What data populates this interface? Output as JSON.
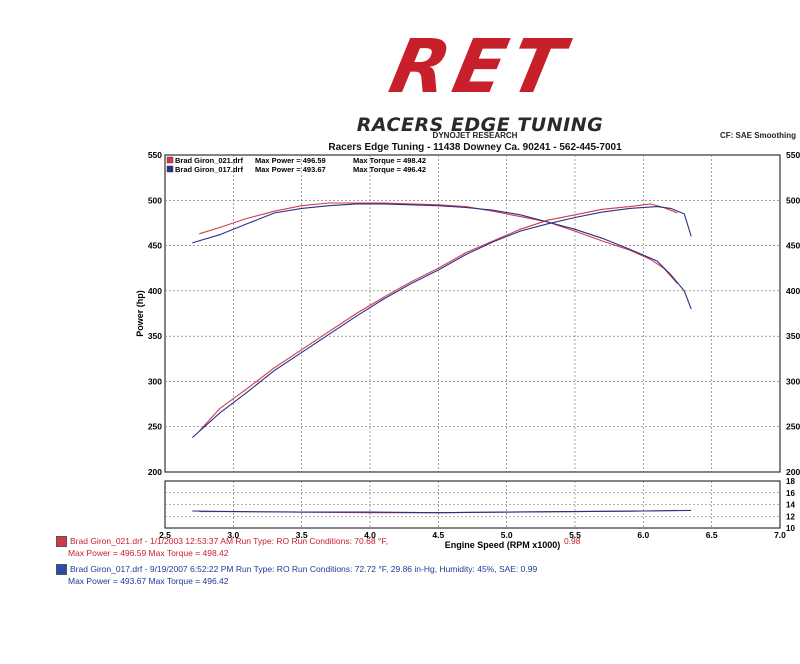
{
  "logo": {
    "main": "RET",
    "sub": "RACERS EDGE TUNING"
  },
  "header": {
    "line1": "DYNOJET RESEARCH",
    "line2": "Racers Edge Tuning - 11438 Downey Ca. 90241 - 562-445-7001",
    "cf": "CF: SAE  Smoothing"
  },
  "legend": [
    {
      "file": "Brad Giron_021.drf",
      "max_power_label": "Max Power = 496.59",
      "max_torque_label": "Max Torque = 498.42",
      "color": "#d23a4a"
    },
    {
      "file": "Brad Giron_017.drf",
      "max_power_label": "Max Power = 493.67",
      "max_torque_label": "Max Torque = 496.42",
      "color": "#2a2f8a"
    }
  ],
  "footer": [
    {
      "line1": "Brad Giron_021.drf - 1/1/2003 12:53:37 AM  Run Type: RO  Run Conditions: 70.68 °F,",
      "line1b": "0.98",
      "line2": "Max Power = 496.59  Max Torque = 498.42",
      "color": "#c8202a"
    },
    {
      "line1": "Brad Giron_017.drf - 9/19/2007 6:52:22 PM  Run Type: RO  Run Conditions: 72.72 °F, 29.86 in-Hg,  Humidity:  45%, SAE: 0.99",
      "line2": "Max Power = 493.67  Max Torque = 496.42",
      "color": "#1f3a93"
    }
  ],
  "chart_data": {
    "type": "line",
    "xlabel": "Engine Speed (RPM x1000)",
    "ylabel": "Power (hp)",
    "xlim": [
      2.5,
      7.0
    ],
    "ylim": [
      200,
      550
    ],
    "x_ticks": [
      "2.5",
      "3.0",
      "3.5",
      "4.0",
      "4.5",
      "5.0",
      "5.5",
      "6.0",
      "6.5",
      "7.0"
    ],
    "y_ticks": [
      "200",
      "250",
      "300",
      "350",
      "400",
      "450",
      "500",
      "550"
    ],
    "y_right_ticks": [
      "200",
      "250",
      "300",
      "350",
      "400",
      "450",
      "500",
      "550"
    ],
    "sub_ticks": [
      "10",
      "12",
      "14",
      "16",
      "18"
    ],
    "sub_ylim": [
      10,
      18
    ],
    "grid": true,
    "series": [
      {
        "name": "Brad Giron_021.drf",
        "color": "#d23a4a",
        "power": {
          "x": [
            2.75,
            2.9,
            3.1,
            3.3,
            3.5,
            3.7,
            3.9,
            4.1,
            4.3,
            4.5,
            4.7,
            4.9,
            5.1,
            5.3,
            5.5,
            5.7,
            5.9,
            6.05,
            6.15,
            6.25
          ],
          "y": [
            245,
            270,
            292,
            315,
            335,
            355,
            375,
            393,
            410,
            425,
            442,
            455,
            468,
            478,
            484,
            490,
            493,
            496,
            492,
            486
          ]
        },
        "torque": {
          "x": [
            2.75,
            2.9,
            3.1,
            3.3,
            3.5,
            3.7,
            3.9,
            4.1,
            4.3,
            4.5,
            4.7,
            4.9,
            5.1,
            5.3,
            5.5,
            5.7,
            5.9,
            6.05,
            6.15,
            6.25
          ],
          "y": [
            463,
            470,
            480,
            488,
            494,
            497,
            497,
            497,
            496,
            495,
            493,
            488,
            482,
            476,
            466,
            455,
            445,
            435,
            425,
            408
          ]
        },
        "afr": {
          "x": [
            2.75,
            3.0,
            3.5,
            4.0,
            4.5,
            5.0,
            5.5,
            6.0,
            6.25
          ],
          "y": [
            12.8,
            12.8,
            12.7,
            12.6,
            12.6,
            12.7,
            12.8,
            12.9,
            13.0
          ]
        }
      },
      {
        "name": "Brad Giron_017.drf",
        "color": "#2a2f8a",
        "power": {
          "x": [
            2.7,
            2.9,
            3.1,
            3.3,
            3.5,
            3.7,
            3.9,
            4.1,
            4.3,
            4.5,
            4.7,
            4.9,
            5.1,
            5.3,
            5.5,
            5.7,
            5.9,
            6.1,
            6.2,
            6.3,
            6.35
          ],
          "y": [
            238,
            265,
            288,
            312,
            332,
            352,
            372,
            391,
            408,
            423,
            440,
            454,
            466,
            474,
            481,
            487,
            491,
            493,
            491,
            485,
            460
          ]
        },
        "torque": {
          "x": [
            2.7,
            2.9,
            3.1,
            3.3,
            3.5,
            3.7,
            3.9,
            4.1,
            4.3,
            4.5,
            4.7,
            4.9,
            5.1,
            5.3,
            5.5,
            5.7,
            5.9,
            6.1,
            6.2,
            6.3,
            6.35
          ],
          "y": [
            453,
            462,
            474,
            486,
            491,
            494,
            496,
            496,
            495,
            494,
            492,
            489,
            484,
            476,
            468,
            458,
            446,
            433,
            418,
            400,
            380
          ]
        },
        "afr": {
          "x": [
            2.7,
            3.0,
            3.5,
            4.0,
            4.5,
            5.0,
            5.5,
            6.0,
            6.35
          ],
          "y": [
            12.9,
            12.8,
            12.7,
            12.7,
            12.6,
            12.7,
            12.8,
            12.9,
            13.0
          ]
        }
      }
    ]
  }
}
